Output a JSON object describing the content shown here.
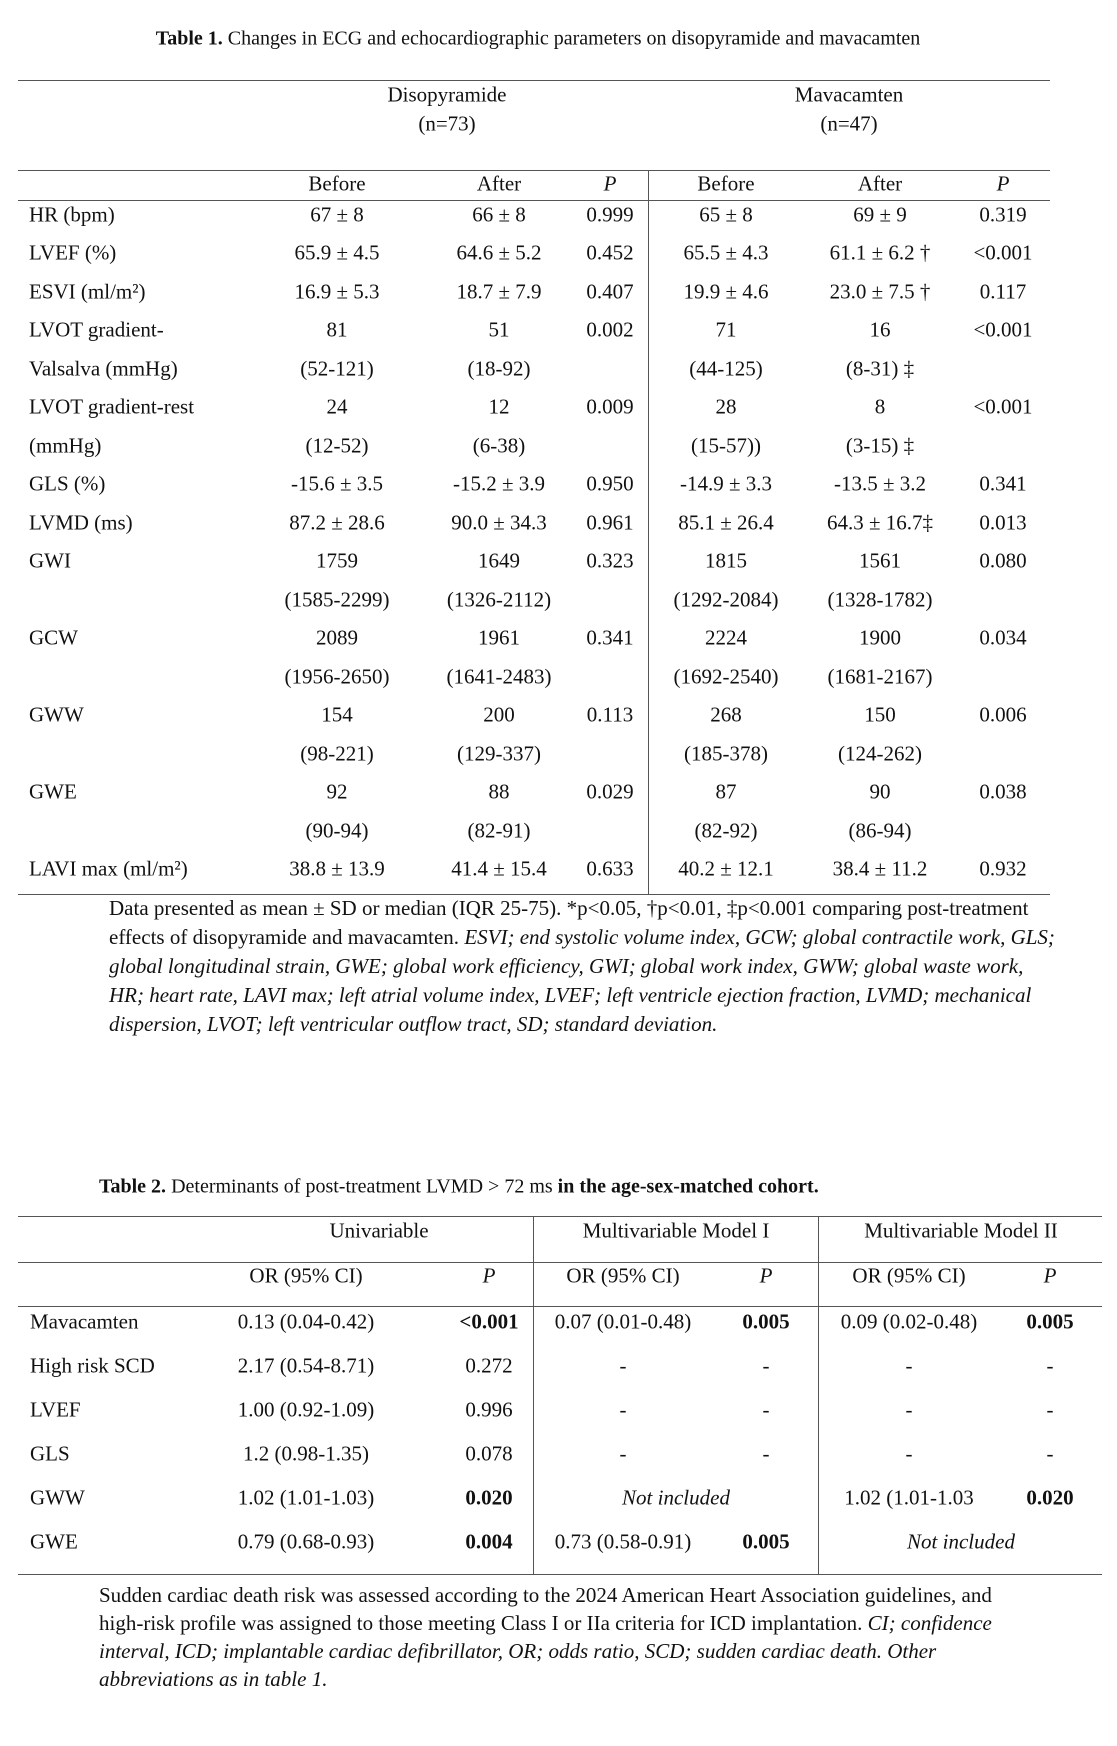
{
  "table1": {
    "title_bold": "Table 1.",
    "title_rest": " Changes in ECG and echocardiographic parameters on disopyramide and mavacamten",
    "groups": [
      {
        "name": "Disopyramide",
        "n": "(n=73)"
      },
      {
        "name": "Mavacamten",
        "n": "(n=47)"
      }
    ],
    "columns": [
      "Before",
      "After",
      "P",
      "Before",
      "After",
      "P"
    ],
    "rows": [
      [
        "HR (bpm)",
        "67 ± 8",
        "66 ± 8",
        "0.999",
        "65 ± 8",
        "69 ± 9",
        "0.319"
      ],
      [
        "LVEF (%)",
        "65.9 ± 4.5",
        "64.6 ± 5.2",
        "0.452",
        "65.5 ± 4.3",
        "61.1 ± 6.2 †",
        "<0.001"
      ],
      [
        "ESVI (ml/m²)",
        "16.9 ± 5.3",
        "18.7 ± 7.9",
        "0.407",
        "19.9 ± 4.6",
        "23.0 ± 7.5 †",
        "0.117"
      ],
      [
        "LVOT gradient-",
        "81",
        "51",
        "0.002",
        "71",
        "16",
        "<0.001"
      ],
      [
        "Valsalva (mmHg)",
        "(52-121)",
        "(18-92)",
        "",
        "(44-125)",
        "(8-31) ‡",
        ""
      ],
      [
        "LVOT gradient-rest",
        "24",
        "12",
        "0.009",
        "28",
        "8",
        "<0.001"
      ],
      [
        "(mmHg)",
        "(12-52)",
        "(6-38)",
        "",
        "(15-57))",
        "(3-15) ‡",
        ""
      ],
      [
        "GLS (%)",
        "-15.6 ± 3.5",
        "-15.2 ± 3.9",
        "0.950",
        "-14.9 ± 3.3",
        "-13.5 ± 3.2",
        "0.341"
      ],
      [
        "LVMD (ms)",
        "87.2 ± 28.6",
        "90.0 ± 34.3",
        "0.961",
        "85.1 ± 26.4",
        "64.3 ± 16.7‡",
        "0.013"
      ],
      [
        "GWI",
        "1759",
        "1649",
        "0.323",
        "1815",
        "1561",
        "0.080"
      ],
      [
        "",
        "(1585-2299)",
        "(1326-2112)",
        "",
        "(1292-2084)",
        "(1328-1782)",
        ""
      ],
      [
        "GCW",
        "2089",
        "1961",
        "0.341",
        "2224",
        "1900",
        "0.034"
      ],
      [
        "",
        "(1956-2650)",
        "(1641-2483)",
        "",
        "(1692-2540)",
        "(1681-2167)",
        ""
      ],
      [
        "GWW",
        "154",
        "200",
        "0.113",
        "268",
        "150",
        "0.006"
      ],
      [
        "",
        "(98-221)",
        "(129-337)",
        "",
        "(185-378)",
        "(124-262)",
        ""
      ],
      [
        "GWE",
        "92",
        "88",
        "0.029",
        "87",
        "90",
        "0.038"
      ],
      [
        "",
        "(90-94)",
        "(82-91)",
        "",
        "(82-92)",
        "(86-94)",
        ""
      ],
      [
        "LAVI max (ml/m²)",
        "38.8 ± 13.9",
        "41.4 ± 15.4",
        "0.633",
        "40.2 ± 12.1",
        "38.4 ± 11.2",
        "0.932"
      ]
    ],
    "footnote_plain": "Data presented as mean ± SD or median (IQR 25-75). *p<0.05, †p<0.01, ‡p<0.001 comparing post-treatment effects of disopyramide and mavacamten. ",
    "footnote_italic": "ESVI; end systolic volume index, GCW; global contractile work, GLS; global longitudinal strain, GWE; global work efficiency, GWI; global work index, GWW; global waste work, HR; heart rate, LAVI max; left atrial volume index, LVEF; left ventricle ejection fraction, LVMD; mechanical dispersion, LVOT; left ventricular outflow tract, SD; standard deviation."
  },
  "table2": {
    "title_bold": "Table 2.",
    "title_rest": " Determinants of post-treatment LVMD > 72 ms",
    "title_bold_end": " in the age-sex-matched cohort.",
    "groups": [
      "Univariable",
      "Multivariable Model I",
      "Multivariable Model II"
    ],
    "columns": [
      "OR (95% CI)",
      "P",
      "OR (95% CI)",
      "P",
      "OR (95% CI)",
      "P"
    ],
    "rows": [
      {
        "label": "Mavacamten",
        "cells": [
          {
            "t": "0.13 (0.04-0.42)"
          },
          {
            "t": "<0.001",
            "b": true
          },
          {
            "t": "0.07 (0.01-0.48)"
          },
          {
            "t": "0.005",
            "b": true
          },
          {
            "t": "0.09 (0.02-0.48)"
          },
          {
            "t": "0.005",
            "b": true
          }
        ]
      },
      {
        "label": "High risk SCD",
        "cells": [
          {
            "t": "2.17 (0.54-8.71)"
          },
          {
            "t": "0.272"
          },
          {
            "t": "-"
          },
          {
            "t": "-"
          },
          {
            "t": "-"
          },
          {
            "t": "-"
          }
        ]
      },
      {
        "label": "LVEF",
        "cells": [
          {
            "t": "1.00 (0.92-1.09)"
          },
          {
            "t": "0.996"
          },
          {
            "t": "-"
          },
          {
            "t": "-"
          },
          {
            "t": "-"
          },
          {
            "t": "-"
          }
        ]
      },
      {
        "label": "GLS",
        "cells": [
          {
            "t": "1.2 (0.98-1.35)"
          },
          {
            "t": "0.078"
          },
          {
            "t": "-"
          },
          {
            "t": "-"
          },
          {
            "t": "-"
          },
          {
            "t": "-"
          }
        ]
      },
      {
        "label": "GWW",
        "cells": [
          {
            "t": "1.02 (1.01-1.03)"
          },
          {
            "t": "0.020",
            "b": true
          },
          {
            "t": "Not included",
            "span": "m1"
          },
          {
            "t": "1.02 (1.01-1.03"
          },
          {
            "t": "0.020",
            "b": true
          }
        ]
      },
      {
        "label": "GWE",
        "cells": [
          {
            "t": "0.79 (0.68-0.93)"
          },
          {
            "t": "0.004",
            "b": true
          },
          {
            "t": "0.73 (0.58-0.91)"
          },
          {
            "t": "0.005",
            "b": true
          },
          {
            "t": "Not included",
            "span": "m2"
          }
        ]
      }
    ],
    "footnote_plain": "Sudden cardiac death risk was assessed according to the 2024 American Heart Association guidelines, and high-risk profile was assigned to those meeting Class I or IIa criteria for ICD implantation. ",
    "footnote_italic": "CI; confidence interval, ICD; implantable cardiac defibrillator, OR; odds ratio, SCD; sudden cardiac death. Other abbreviations as in table 1."
  }
}
